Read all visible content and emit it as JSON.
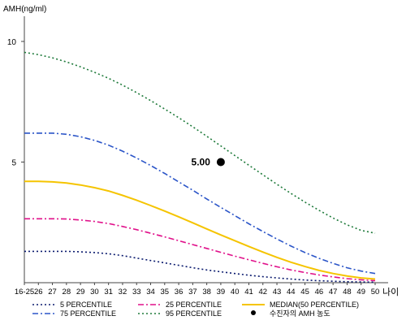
{
  "chart_data": {
    "type": "line",
    "ylabel": "AMH(ng/ml)",
    "xlabel": "나이",
    "ylim": [
      0,
      11
    ],
    "yticks": [
      5,
      10
    ],
    "categories": [
      "16-25",
      "26",
      "27",
      "28",
      "29",
      "30",
      "31",
      "32",
      "33",
      "34",
      "35",
      "36",
      "37",
      "38",
      "39",
      "40",
      "41",
      "42",
      "43",
      "44",
      "45",
      "46",
      "47",
      "48",
      "49",
      "50"
    ],
    "series": [
      {
        "name": "5 PERCENTILE",
        "color": "#0a1a6e",
        "dash": "2,3",
        "values": [
          1.3,
          1.3,
          1.3,
          1.3,
          1.28,
          1.25,
          1.2,
          1.12,
          1.02,
          0.92,
          0.82,
          0.72,
          0.62,
          0.53,
          0.45,
          0.38,
          0.31,
          0.25,
          0.2,
          0.15,
          0.11,
          0.08,
          0.06,
          0.04,
          0.03,
          0.02
        ]
      },
      {
        "name": "25 PERCENTILE",
        "color": "#e0108a",
        "dash": "7,3,2,3",
        "values": [
          2.65,
          2.65,
          2.65,
          2.64,
          2.6,
          2.54,
          2.45,
          2.33,
          2.2,
          2.05,
          1.9,
          1.74,
          1.58,
          1.42,
          1.26,
          1.1,
          0.95,
          0.8,
          0.66,
          0.53,
          0.42,
          0.32,
          0.24,
          0.17,
          0.12,
          0.08
        ]
      },
      {
        "name": "MEDIAN(50 PERCENTILE)",
        "color": "#f5c400",
        "dash": "",
        "values": [
          4.2,
          4.2,
          4.18,
          4.13,
          4.05,
          3.94,
          3.8,
          3.62,
          3.42,
          3.2,
          2.97,
          2.73,
          2.48,
          2.23,
          1.98,
          1.74,
          1.5,
          1.27,
          1.05,
          0.85,
          0.67,
          0.51,
          0.38,
          0.28,
          0.2,
          0.15
        ]
      },
      {
        "name": "75 PERCENTILE",
        "color": "#2b55c8",
        "dash": "7,3,2,3",
        "values": [
          6.2,
          6.2,
          6.2,
          6.15,
          6.05,
          5.9,
          5.7,
          5.45,
          5.17,
          4.86,
          4.53,
          4.18,
          3.83,
          3.47,
          3.12,
          2.78,
          2.44,
          2.12,
          1.81,
          1.52,
          1.25,
          1.01,
          0.8,
          0.62,
          0.48,
          0.38
        ]
      },
      {
        "name": "95 PERCENTILE",
        "color": "#1e7a3a",
        "dash": "2,3",
        "values": [
          9.55,
          9.45,
          9.32,
          9.15,
          8.95,
          8.72,
          8.47,
          8.19,
          7.88,
          7.55,
          7.2,
          6.84,
          6.46,
          6.07,
          5.67,
          5.27,
          4.87,
          4.47,
          4.08,
          3.7,
          3.34,
          3.0,
          2.68,
          2.4,
          2.17,
          2.05
        ]
      }
    ],
    "marker": {
      "name": "수진자의 AMH 농도",
      "x": "39",
      "y": 5.0,
      "label": "5.00",
      "color": "#000000"
    },
    "legend_position": "bottom",
    "legend_order": [
      "5 PERCENTILE",
      "25 PERCENTILE",
      "MEDIAN(50 PERCENTILE)",
      "75 PERCENTILE",
      "95 PERCENTILE",
      "수진자의 AMH 농도"
    ],
    "grid": false
  }
}
